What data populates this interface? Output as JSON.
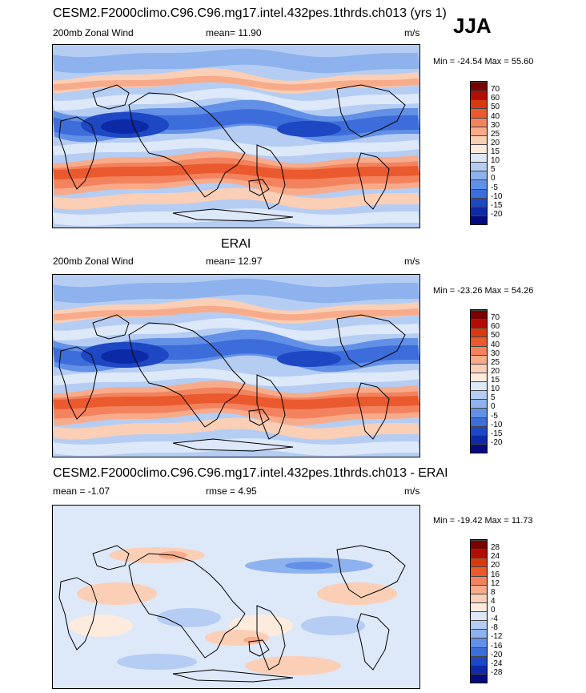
{
  "header": {
    "title": "CESM2.F2000climo.C96.C96.mg17.intel.432pes.1thrds.ch013 (yrs 1)",
    "season": "JJA"
  },
  "panels": [
    {
      "title": "",
      "left_label": "200mb Zonal Wind",
      "stat_label": "mean=  11.90",
      "units": "m/s",
      "minmax": "Min = -24.54 Max =  55.60",
      "levels": [
        "70",
        "60",
        "50",
        "40",
        "30",
        "25",
        "20",
        "15",
        "10",
        "5",
        "0",
        "-5",
        "-10",
        "-15",
        "-20"
      ],
      "colors": [
        "#7a0000",
        "#b00e05",
        "#d83a10",
        "#ea5a2e",
        "#f3835e",
        "#f7ab8a",
        "#fbcfb6",
        "#fdebdd",
        "#dde8f9",
        "#b5cdf3",
        "#8db2ee",
        "#6290e6",
        "#3d6ddb",
        "#1e47c4",
        "#0d2aa6",
        "#040a82"
      ]
    },
    {
      "title": "ERAI",
      "left_label": "200mb Zonal Wind",
      "stat_label": "mean=  12.97",
      "units": "m/s",
      "minmax": "Min = -23.26 Max =  54.26",
      "levels": [
        "70",
        "60",
        "50",
        "40",
        "30",
        "25",
        "20",
        "15",
        "10",
        "5",
        "0",
        "-5",
        "-10",
        "-15",
        "-20"
      ],
      "colors": [
        "#7a0000",
        "#b00e05",
        "#d83a10",
        "#ea5a2e",
        "#f3835e",
        "#f7ab8a",
        "#fbcfb6",
        "#fdebdd",
        "#dde8f9",
        "#b5cdf3",
        "#8db2ee",
        "#6290e6",
        "#3d6ddb",
        "#1e47c4",
        "#0d2aa6",
        "#040a82"
      ]
    },
    {
      "title": "CESM2.F2000climo.C96.C96.mg17.intel.432pes.1thrds.ch013 - ERAI",
      "left_label": "mean =  -1.07",
      "stat_label": "rmse =   4.95",
      "units": "m/s",
      "minmax": "Min = -19.42 Max =  11.73",
      "levels": [
        "28",
        "24",
        "20",
        "16",
        "12",
        "8",
        "4",
        "0",
        "-4",
        "-8",
        "-12",
        "-16",
        "-20",
        "-24",
        "-28"
      ],
      "colors": [
        "#7a0000",
        "#b00e05",
        "#d83a10",
        "#ea5a2e",
        "#f3835e",
        "#f7ab8a",
        "#fbcfb6",
        "#fdebdd",
        "#dde8f9",
        "#b5cdf3",
        "#8db2ee",
        "#6290e6",
        "#3d6ddb",
        "#1e47c4",
        "#0d2aa6",
        "#040a82"
      ]
    }
  ],
  "chart_data": [
    {
      "type": "heatmap",
      "title": "",
      "variable": "200mb Zonal Wind",
      "units": "m/s",
      "mean": 11.9,
      "min": -24.54,
      "max": 55.6,
      "contour_levels": [
        -20,
        -15,
        -10,
        -5,
        0,
        5,
        10,
        15,
        20,
        25,
        30,
        40,
        50,
        60,
        70
      ]
    },
    {
      "type": "heatmap",
      "title": "ERAI",
      "variable": "200mb Zonal Wind",
      "units": "m/s",
      "mean": 12.97,
      "min": -23.26,
      "max": 54.26,
      "contour_levels": [
        -20,
        -15,
        -10,
        -5,
        0,
        5,
        10,
        15,
        20,
        25,
        30,
        40,
        50,
        60,
        70
      ]
    },
    {
      "type": "heatmap",
      "title": "CESM2.F2000climo.C96.C96.mg17.intel.432pes.1thrds.ch013 - ERAI",
      "units": "m/s",
      "mean": -1.07,
      "rmse": 4.95,
      "min": -19.42,
      "max": 11.73,
      "contour_levels": [
        -28,
        -24,
        -20,
        -16,
        -12,
        -8,
        -4,
        0,
        4,
        8,
        12,
        16,
        20,
        24,
        28
      ]
    }
  ]
}
